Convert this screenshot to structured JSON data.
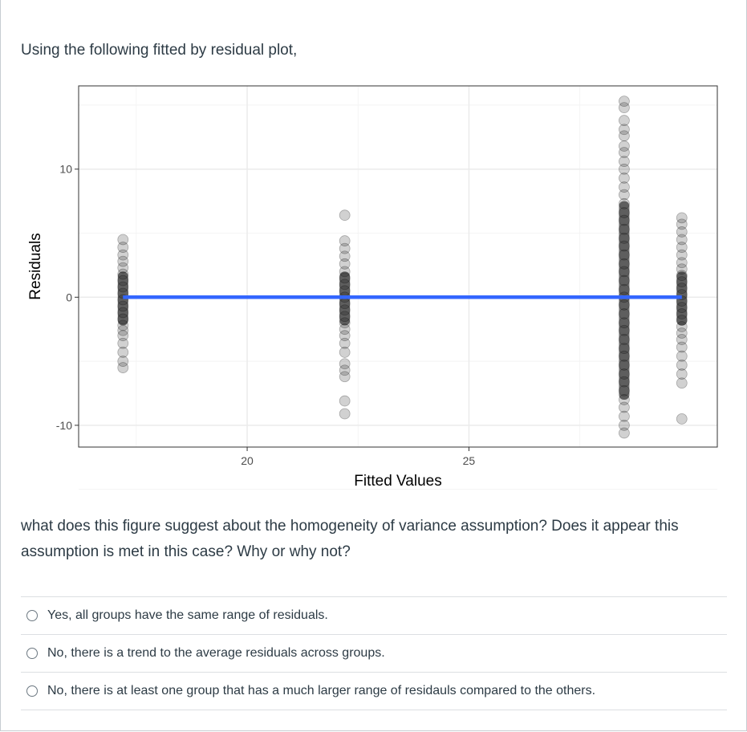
{
  "question": {
    "intro": "Using the following fitted by residual plot,",
    "body": "what does this figure suggest about the homogeneity of variance assumption? Does it appear this assumption is met in this case? Why or why not?"
  },
  "answers": [
    {
      "label": "Yes, all groups have the same range of residuals."
    },
    {
      "label": "No, there is a trend to the average residuals across groups."
    },
    {
      "label": "No, there is at least one group that has a much larger range of residauls compared to the others."
    }
  ],
  "chart_data": {
    "type": "scatter",
    "title": "",
    "xlabel": "Fitted Values",
    "ylabel": "Residuals",
    "xlim": [
      16.2,
      30.6
    ],
    "ylim": [
      -11.7,
      16.5
    ],
    "x_ticks": [
      20,
      25
    ],
    "y_ticks": [
      10,
      0,
      -10
    ],
    "grid": true,
    "point_color": "#000000",
    "line_color": "#3366ff",
    "groups": [
      {
        "x": 17.2,
        "residuals": [
          4.5,
          3.9,
          3.3,
          2.8,
          2.3,
          1.8,
          1.3,
          0.8,
          0.3,
          -0.2,
          -0.7,
          -1.2,
          -1.7,
          -2.2,
          -2.6,
          -3.0,
          -3.6,
          -4.3,
          -5.0,
          -5.5
        ]
      },
      {
        "x": 22.2,
        "residuals": [
          6.4,
          4.4,
          3.8,
          3.2,
          2.6,
          2.0,
          1.5,
          1.0,
          0.5,
          0.0,
          -0.5,
          -1.0,
          -1.5,
          -2.0,
          -2.5,
          -3.0,
          -3.6,
          -4.3,
          -5.2,
          -5.7,
          -6.2,
          -8.1,
          -9.1
        ]
      },
      {
        "x": 28.5,
        "residuals": [
          15.3,
          14.8,
          13.8,
          13.1,
          12.6,
          11.8,
          11.3,
          10.6,
          10.0,
          9.3,
          8.6,
          8.0,
          7.3,
          6.6,
          6.0,
          5.3,
          4.6,
          4.0,
          3.3,
          2.6,
          2.0,
          1.3,
          0.6,
          0.0,
          -0.6,
          -1.3,
          -2.0,
          -2.6,
          -3.3,
          -4.0,
          -4.6,
          -5.3,
          -6.0,
          -6.6,
          -7.3,
          -8.0,
          -8.6,
          -9.3,
          -10.0,
          -10.6
        ]
      },
      {
        "x": 29.8,
        "residuals": [
          6.2,
          5.7,
          5.1,
          4.5,
          3.9,
          3.3,
          2.7,
          2.2,
          1.7,
          1.2,
          0.7,
          0.2,
          -0.3,
          -0.8,
          -1.3,
          -1.8,
          -2.3,
          -2.8,
          -3.3,
          -3.9,
          -4.6,
          -5.3,
          -6.0,
          -6.7,
          -9.5
        ]
      }
    ],
    "fit_line": {
      "x": [
        17.2,
        29.8
      ],
      "y": [
        0,
        0
      ]
    }
  }
}
